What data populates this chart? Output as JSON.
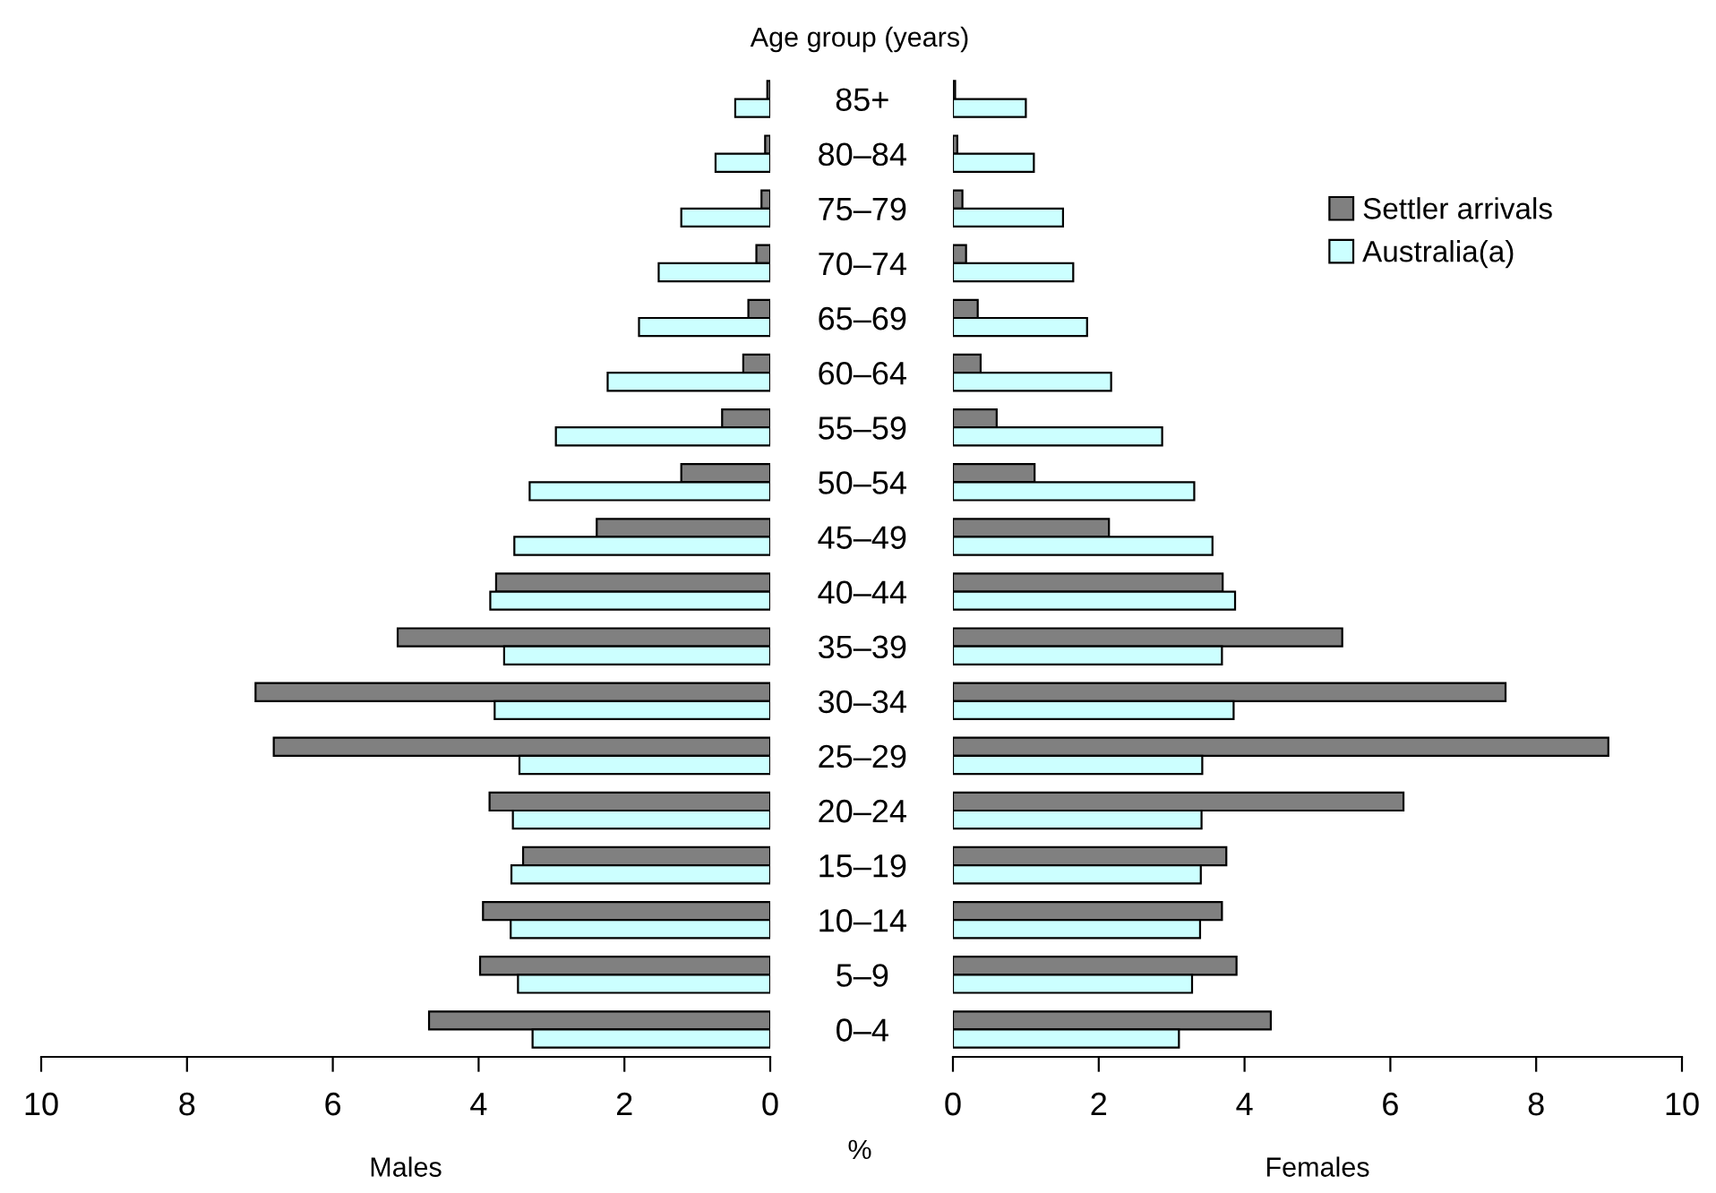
{
  "chart_data": [
    {
      "type": "bar",
      "orientation": "horizontal",
      "ylabel": "Age group (years)",
      "xlabel": "Males",
      "annotations": [
        "%"
      ],
      "categories": [
        "85+",
        "80–84",
        "75–79",
        "70–74",
        "65–69",
        "60–64",
        "55–59",
        "50–54",
        "45–49",
        "40–44",
        "35–39",
        "30–34",
        "25–29",
        "20–24",
        "15–19",
        "10–14",
        "5–9",
        "0–4"
      ],
      "series": [
        {
          "color": "#808080",
          "values": [
            0.04,
            0.07,
            0.12,
            0.19,
            0.3,
            0.37,
            0.66,
            1.22,
            2.38,
            3.76,
            5.11,
            7.06,
            6.81,
            3.85,
            3.39,
            3.94,
            3.98,
            4.68
          ]
        },
        {
          "color": "#ccffff",
          "values": [
            0.48,
            0.75,
            1.22,
            1.53,
            1.8,
            2.23,
            2.94,
            3.3,
            3.51,
            3.84,
            3.65,
            3.78,
            3.44,
            3.53,
            3.55,
            3.56,
            3.46,
            3.26
          ]
        }
      ],
      "xlim": [
        10,
        0
      ],
      "xticks": [
        10,
        8,
        6,
        4,
        2,
        0
      ],
      "grid": false,
      "legend": false
    },
    {
      "type": "bar",
      "orientation": "horizontal",
      "xlabel": "Females",
      "tick_labels": "x",
      "categories": [
        null,
        null,
        null,
        null,
        null,
        null,
        null,
        null,
        null,
        null,
        null,
        null,
        null,
        null,
        null,
        null,
        null,
        null
      ],
      "series": [
        {
          "name": "Settler arrivals",
          "color": "#808080",
          "values": [
            0.03,
            0.06,
            0.13,
            0.18,
            0.34,
            0.38,
            0.6,
            1.12,
            2.14,
            3.7,
            5.34,
            7.58,
            8.99,
            6.18,
            3.75,
            3.69,
            3.89,
            4.36
          ]
        },
        {
          "name": "Australia(a)",
          "color": "#ccffff",
          "values": [
            1.0,
            1.11,
            1.51,
            1.65,
            1.84,
            2.17,
            2.87,
            3.31,
            3.56,
            3.87,
            3.69,
            3.85,
            3.42,
            3.41,
            3.4,
            3.39,
            3.28,
            3.1
          ]
        }
      ],
      "xlim": [
        0,
        10
      ],
      "xticks": [
        0,
        2,
        4,
        6,
        8,
        10
      ],
      "grid": false,
      "legend": "top right"
    }
  ]
}
